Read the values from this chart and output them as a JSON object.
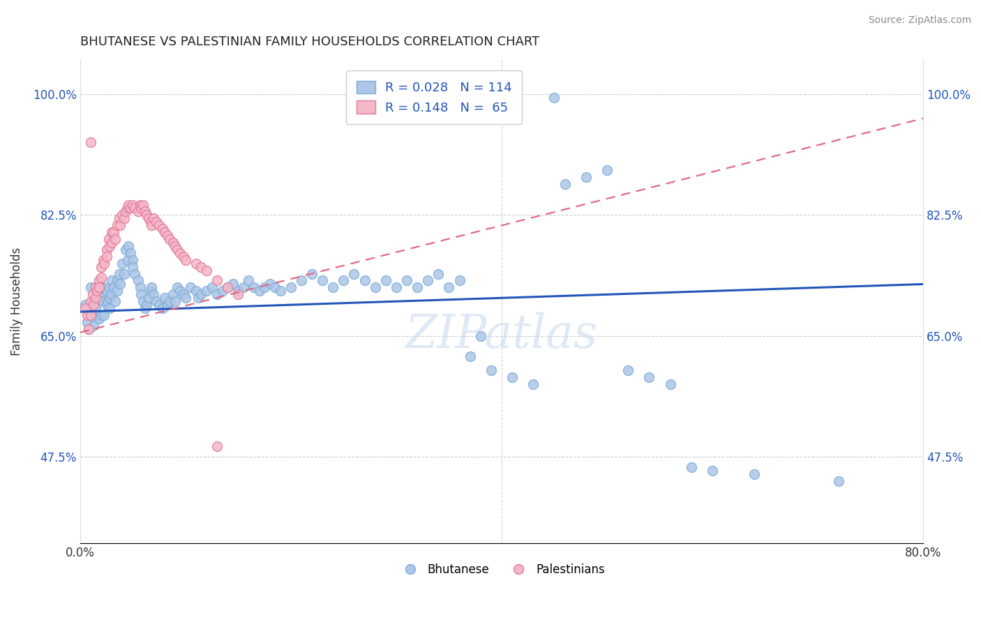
{
  "title": "BHUTANESE VS PALESTINIAN FAMILY HOUSEHOLDS CORRELATION CHART",
  "source": "Source: ZipAtlas.com",
  "ylabel": "Family Households",
  "xlim": [
    0.0,
    0.8
  ],
  "ylim": [
    0.35,
    1.05
  ],
  "yticks": [
    0.475,
    0.65,
    0.825,
    1.0
  ],
  "ytick_labels": [
    "47.5%",
    "65.0%",
    "82.5%",
    "100.0%"
  ],
  "xticks": [
    0.0,
    0.1,
    0.2,
    0.3,
    0.4,
    0.5,
    0.6,
    0.7,
    0.8
  ],
  "xtick_labels": [
    "0.0%",
    "",
    "",
    "",
    "",
    "",
    "",
    "",
    "80.0%"
  ],
  "blue_color": "#aec6e8",
  "pink_color": "#f5b8c8",
  "blue_edge": "#7aadd4",
  "pink_edge": "#e07898",
  "trend_blue": "#2255bb",
  "trend_pink": "#e06888",
  "label_blue": "Bhutanese",
  "label_pink": "Palestinians",
  "blue_R": 0.028,
  "blue_N": 114,
  "pink_R": 0.148,
  "pink_N": 65,
  "blue_trend_x0": 0.0,
  "blue_trend_y0": 0.685,
  "blue_trend_x1": 0.8,
  "blue_trend_y1": 0.725,
  "pink_trend_x0": 0.0,
  "pink_trend_y0": 0.655,
  "pink_trend_x1": 0.8,
  "pink_trend_y1": 0.965,
  "blue_x": [
    0.005,
    0.007,
    0.008,
    0.01,
    0.01,
    0.012,
    0.013,
    0.015,
    0.015,
    0.016,
    0.018,
    0.018,
    0.02,
    0.02,
    0.022,
    0.022,
    0.023,
    0.025,
    0.025,
    0.026,
    0.027,
    0.028,
    0.028,
    0.03,
    0.03,
    0.032,
    0.033,
    0.035,
    0.035,
    0.037,
    0.038,
    0.04,
    0.042,
    0.043,
    0.045,
    0.046,
    0.048,
    0.05,
    0.05,
    0.052,
    0.055,
    0.057,
    0.058,
    0.06,
    0.062,
    0.063,
    0.065,
    0.067,
    0.068,
    0.07,
    0.072,
    0.075,
    0.078,
    0.08,
    0.083,
    0.085,
    0.088,
    0.09,
    0.092,
    0.095,
    0.098,
    0.1,
    0.105,
    0.11,
    0.112,
    0.115,
    0.12,
    0.125,
    0.13,
    0.135,
    0.14,
    0.145,
    0.15,
    0.155,
    0.16,
    0.165,
    0.17,
    0.175,
    0.18,
    0.185,
    0.19,
    0.2,
    0.21,
    0.22,
    0.23,
    0.24,
    0.25,
    0.26,
    0.27,
    0.28,
    0.29,
    0.3,
    0.31,
    0.32,
    0.33,
    0.34,
    0.35,
    0.36,
    0.37,
    0.38,
    0.39,
    0.41,
    0.43,
    0.45,
    0.46,
    0.48,
    0.5,
    0.52,
    0.54,
    0.56,
    0.58,
    0.6,
    0.64,
    0.72
  ],
  "blue_y": [
    0.695,
    0.67,
    0.66,
    0.72,
    0.68,
    0.7,
    0.665,
    0.72,
    0.69,
    0.68,
    0.71,
    0.675,
    0.705,
    0.68,
    0.72,
    0.7,
    0.68,
    0.715,
    0.695,
    0.7,
    0.72,
    0.705,
    0.69,
    0.73,
    0.71,
    0.72,
    0.7,
    0.73,
    0.715,
    0.74,
    0.725,
    0.755,
    0.74,
    0.775,
    0.76,
    0.78,
    0.77,
    0.76,
    0.75,
    0.74,
    0.73,
    0.72,
    0.71,
    0.7,
    0.69,
    0.695,
    0.705,
    0.715,
    0.72,
    0.71,
    0.7,
    0.695,
    0.69,
    0.705,
    0.695,
    0.7,
    0.71,
    0.7,
    0.72,
    0.715,
    0.71,
    0.705,
    0.72,
    0.715,
    0.705,
    0.71,
    0.715,
    0.72,
    0.71,
    0.715,
    0.72,
    0.725,
    0.715,
    0.72,
    0.73,
    0.72,
    0.715,
    0.72,
    0.725,
    0.72,
    0.715,
    0.72,
    0.73,
    0.74,
    0.73,
    0.72,
    0.73,
    0.74,
    0.73,
    0.72,
    0.73,
    0.72,
    0.73,
    0.72,
    0.73,
    0.74,
    0.72,
    0.73,
    0.62,
    0.65,
    0.6,
    0.59,
    0.58,
    0.995,
    0.87,
    0.88,
    0.89,
    0.6,
    0.59,
    0.58,
    0.46,
    0.455,
    0.45,
    0.44
  ],
  "pink_x": [
    0.005,
    0.007,
    0.008,
    0.01,
    0.01,
    0.012,
    0.013,
    0.015,
    0.015,
    0.016,
    0.018,
    0.018,
    0.02,
    0.02,
    0.022,
    0.023,
    0.025,
    0.025,
    0.027,
    0.028,
    0.03,
    0.03,
    0.032,
    0.033,
    0.035,
    0.037,
    0.038,
    0.04,
    0.042,
    0.043,
    0.045,
    0.046,
    0.048,
    0.05,
    0.052,
    0.055,
    0.057,
    0.058,
    0.06,
    0.062,
    0.063,
    0.065,
    0.067,
    0.068,
    0.07,
    0.072,
    0.075,
    0.078,
    0.08,
    0.083,
    0.085,
    0.088,
    0.09,
    0.092,
    0.095,
    0.098,
    0.1,
    0.11,
    0.115,
    0.12,
    0.13,
    0.14,
    0.15,
    0.01,
    0.13
  ],
  "pink_y": [
    0.69,
    0.68,
    0.66,
    0.7,
    0.68,
    0.71,
    0.695,
    0.72,
    0.705,
    0.715,
    0.73,
    0.72,
    0.75,
    0.735,
    0.76,
    0.755,
    0.775,
    0.765,
    0.79,
    0.78,
    0.8,
    0.785,
    0.8,
    0.79,
    0.81,
    0.82,
    0.81,
    0.825,
    0.82,
    0.83,
    0.835,
    0.84,
    0.835,
    0.84,
    0.835,
    0.83,
    0.84,
    0.835,
    0.84,
    0.83,
    0.825,
    0.82,
    0.815,
    0.81,
    0.82,
    0.815,
    0.81,
    0.805,
    0.8,
    0.795,
    0.79,
    0.785,
    0.78,
    0.775,
    0.77,
    0.765,
    0.76,
    0.755,
    0.75,
    0.745,
    0.73,
    0.72,
    0.71,
    0.93,
    0.49
  ]
}
